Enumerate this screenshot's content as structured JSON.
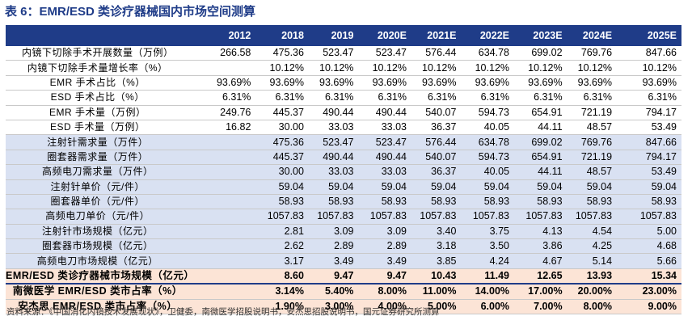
{
  "title": "表 6：EMR/ESD 类诊疗器械国内市场空间测算",
  "table": {
    "header": [
      "",
      "2012",
      "2018",
      "2019",
      "2020E",
      "2021E",
      "2022E",
      "2023E",
      "2024E",
      "2025E"
    ],
    "rows": [
      {
        "label": "内镜下切除手术开展数量（万例）",
        "values": [
          "266.58",
          "475.36",
          "523.47",
          "523.47",
          "576.44",
          "634.78",
          "699.02",
          "769.76",
          "847.66"
        ]
      },
      {
        "label": "内镜下切除手术量增长率（%）",
        "values": [
          "",
          "10.12%",
          "10.12%",
          "10.12%",
          "10.12%",
          "10.12%",
          "10.12%",
          "10.12%",
          "10.12%"
        ]
      },
      {
        "label": "EMR 手术占比（%）",
        "values": [
          "93.69%",
          "93.69%",
          "93.69%",
          "93.69%",
          "93.69%",
          "93.69%",
          "93.69%",
          "93.69%",
          "93.69%"
        ]
      },
      {
        "label": "ESD 手术占比（%）",
        "values": [
          "6.31%",
          "6.31%",
          "6.31%",
          "6.31%",
          "6.31%",
          "6.31%",
          "6.31%",
          "6.31%",
          "6.31%"
        ]
      },
      {
        "label": "EMR 手术量（万例）",
        "values": [
          "249.76",
          "445.37",
          "490.44",
          "490.44",
          "540.07",
          "594.73",
          "654.91",
          "721.19",
          "794.17"
        ]
      },
      {
        "label": "ESD 手术量（万例）",
        "values": [
          "16.82",
          "30.00",
          "33.03",
          "33.03",
          "36.37",
          "40.05",
          "44.11",
          "48.57",
          "53.49"
        ]
      },
      {
        "label": "注射针需求量（万件）",
        "values": [
          "",
          "475.36",
          "523.47",
          "523.47",
          "576.44",
          "634.78",
          "699.02",
          "769.76",
          "847.66"
        ]
      },
      {
        "label": "圈套器需求量（万件）",
        "values": [
          "",
          "445.37",
          "490.44",
          "490.44",
          "540.07",
          "594.73",
          "654.91",
          "721.19",
          "794.17"
        ]
      },
      {
        "label": "高频电刀需求量（万件）",
        "values": [
          "",
          "30.00",
          "33.03",
          "33.03",
          "36.37",
          "40.05",
          "44.11",
          "48.57",
          "53.49"
        ]
      },
      {
        "label": "注射针单价（元/件）",
        "values": [
          "",
          "59.04",
          "59.04",
          "59.04",
          "59.04",
          "59.04",
          "59.04",
          "59.04",
          "59.04"
        ]
      },
      {
        "label": "圈套器单价（元/件）",
        "values": [
          "",
          "58.93",
          "58.93",
          "58.93",
          "58.93",
          "58.93",
          "58.93",
          "58.93",
          "58.93"
        ]
      },
      {
        "label": "高频电刀单价（元/件）",
        "values": [
          "",
          "1057.83",
          "1057.83",
          "1057.83",
          "1057.83",
          "1057.83",
          "1057.83",
          "1057.83",
          "1057.83"
        ]
      },
      {
        "label": "注射针市场规模（亿元）",
        "values": [
          "",
          "2.81",
          "3.09",
          "3.09",
          "3.40",
          "3.75",
          "4.13",
          "4.54",
          "5.00"
        ]
      },
      {
        "label": "圈套器市场规模（亿元）",
        "values": [
          "",
          "2.62",
          "2.89",
          "2.89",
          "3.18",
          "3.50",
          "3.86",
          "4.25",
          "4.68"
        ]
      },
      {
        "label": "高频电刀市场规模（亿元）",
        "values": [
          "",
          "3.17",
          "3.49",
          "3.49",
          "3.85",
          "4.24",
          "4.67",
          "5.14",
          "5.66"
        ]
      },
      {
        "label": "EMR/ESD 类诊疗器械市场规模（亿元）",
        "values": [
          "",
          "8.60",
          "9.47",
          "9.47",
          "10.43",
          "11.49",
          "12.65",
          "13.93",
          "15.34"
        ]
      },
      {
        "label": "南微医学 EMR/ESD 类市占率（%）",
        "values": [
          "",
          "3.14%",
          "5.40%",
          "8.00%",
          "11.00%",
          "14.00%",
          "17.00%",
          "20.00%",
          "23.00%"
        ]
      },
      {
        "label": "安杰思 EMR/ESD 类市占率（%）",
        "values": [
          "",
          "1.90%",
          "3.00%",
          "4.00%",
          "5.00%",
          "6.00%",
          "7.00%",
          "8.00%",
          "9.00%"
        ]
      }
    ]
  },
  "source": "资料来源：《中国消化内镜技术发展现状》，卫健委，南微医学招股说明书，安杰思招股说明书，国元证券研究所测算"
}
